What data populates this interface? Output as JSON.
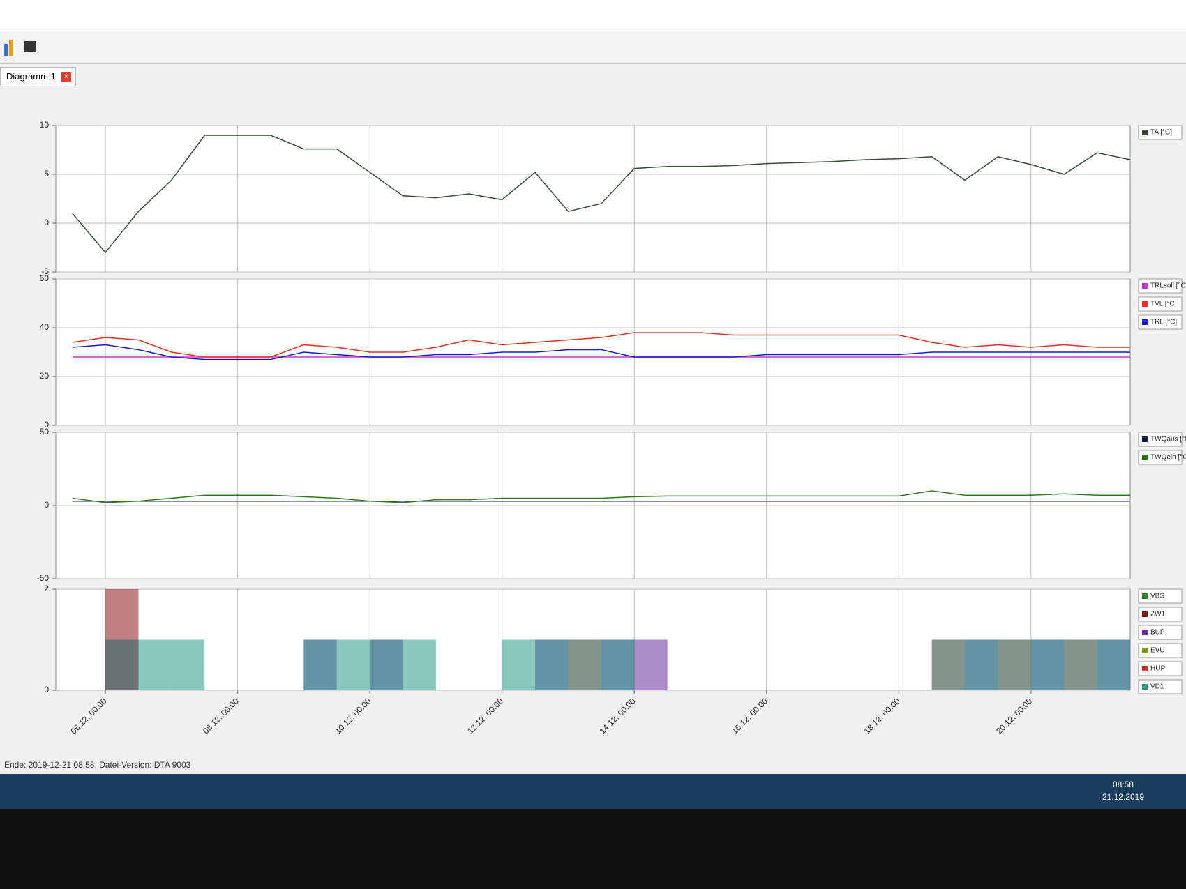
{
  "ui": {
    "tab": "Diagramm 1",
    "status": "Ende: 2019-12-21 08:58, Datei-Version: DTA 9003",
    "clock_time": "08:58",
    "clock_date": "21.12.2019"
  },
  "chart_data": [
    {
      "type": "line",
      "x": [
        "05.12. 12:00",
        "06.12. 00:00",
        "06.12. 12:00",
        "07.12. 00:00",
        "07.12. 12:00",
        "08.12. 00:00",
        "08.12. 12:00",
        "09.12. 00:00",
        "09.12. 12:00",
        "10.12. 00:00",
        "10.12. 12:00",
        "11.12. 00:00",
        "11.12. 12:00",
        "12.12. 00:00",
        "12.12. 12:00",
        "13.12. 00:00",
        "13.12. 12:00",
        "14.12. 00:00",
        "14.12. 12:00",
        "15.12. 00:00",
        "15.12. 12:00",
        "16.12. 00:00",
        "16.12. 12:00",
        "17.12. 00:00",
        "17.12. 12:00",
        "18.12. 00:00",
        "18.12. 12:00",
        "19.12. 00:00",
        "19.12. 12:00",
        "20.12. 00:00",
        "20.12. 12:00",
        "21.12. 00:00",
        "21.12. 12:00"
      ],
      "xlim": [
        "05.12. 06:00",
        "21.12. 12:00"
      ],
      "xticks": [
        "06.12. 00:00",
        "08.12. 00:00",
        "10.12. 00:00",
        "12.12. 00:00",
        "14.12. 00:00",
        "16.12. 00:00",
        "18.12. 00:00",
        "20.12. 00:00"
      ],
      "ylim": [
        -5,
        10
      ],
      "yticks": [
        -5,
        0,
        5,
        10
      ],
      "grid": true,
      "series": [
        {
          "name": "TA [°C]",
          "color": "#3a4a3a",
          "values": [
            1,
            -3,
            1.2,
            4.4,
            9,
            9,
            9,
            7.6,
            7.6,
            5.2,
            2.8,
            2.6,
            3,
            2.4,
            5.2,
            1.2,
            2,
            5.6,
            5.8,
            5.8,
            5.9,
            6.1,
            6.2,
            6.3,
            6.5,
            6.6,
            6.8,
            4.4,
            6.8,
            6,
            5,
            7.2,
            6.5
          ]
        }
      ]
    },
    {
      "type": "line",
      "x": [
        "05.12. 12:00",
        "06.12. 00:00",
        "06.12. 12:00",
        "07.12. 00:00",
        "07.12. 12:00",
        "08.12. 00:00",
        "08.12. 12:00",
        "09.12. 00:00",
        "09.12. 12:00",
        "10.12. 00:00",
        "10.12. 12:00",
        "11.12. 00:00",
        "11.12. 12:00",
        "12.12. 00:00",
        "12.12. 12:00",
        "13.12. 00:00",
        "13.12. 12:00",
        "14.12. 00:00",
        "14.12. 12:00",
        "15.12. 00:00",
        "15.12. 12:00",
        "16.12. 00:00",
        "16.12. 12:00",
        "17.12. 00:00",
        "17.12. 12:00",
        "18.12. 00:00",
        "18.12. 12:00",
        "19.12. 00:00",
        "19.12. 12:00",
        "20.12. 00:00",
        "20.12. 12:00",
        "21.12. 00:00",
        "21.12. 12:00"
      ],
      "xlim": [
        "05.12. 06:00",
        "21.12. 12:00"
      ],
      "xticks": [
        "06.12. 00:00",
        "08.12. 00:00",
        "10.12. 00:00",
        "12.12. 00:00",
        "14.12. 00:00",
        "16.12. 00:00",
        "18.12. 00:00",
        "20.12. 00:00"
      ],
      "ylim": [
        0,
        60
      ],
      "yticks": [
        0,
        20,
        40,
        60
      ],
      "grid": true,
      "series": [
        {
          "name": "TRLsoll [°C]",
          "color": "#cc33cc",
          "values": [
            28,
            28,
            28,
            28,
            28,
            28,
            28,
            28,
            28,
            28,
            28,
            28,
            28,
            28,
            28,
            28,
            28,
            28,
            28,
            28,
            28,
            28,
            28,
            28,
            28,
            28,
            28,
            28,
            28,
            28,
            28,
            28,
            28
          ]
        },
        {
          "name": "TVL [°C]",
          "color": "#e03020",
          "values": [
            34,
            36,
            35,
            30,
            28,
            28,
            28,
            33,
            32,
            30,
            30,
            32,
            35,
            33,
            34,
            35,
            36,
            38,
            38,
            38,
            37,
            37,
            37,
            37,
            37,
            37,
            34,
            32,
            33,
            32,
            33,
            32,
            32
          ]
        },
        {
          "name": "TRL [°C]",
          "color": "#1a1acc",
          "values": [
            32,
            33,
            31,
            28,
            27,
            27,
            27,
            30,
            29,
            28,
            28,
            29,
            29,
            30,
            30,
            31,
            31,
            28,
            28,
            28,
            28,
            29,
            29,
            29,
            29,
            29,
            30,
            30,
            30,
            30,
            30,
            30,
            30
          ]
        }
      ]
    },
    {
      "type": "line",
      "x": [
        "05.12. 12:00",
        "06.12. 00:00",
        "06.12. 12:00",
        "07.12. 00:00",
        "07.12. 12:00",
        "08.12. 00:00",
        "08.12. 12:00",
        "09.12. 00:00",
        "09.12. 12:00",
        "10.12. 00:00",
        "10.12. 12:00",
        "11.12. 00:00",
        "11.12. 12:00",
        "12.12. 00:00",
        "12.12. 12:00",
        "13.12. 00:00",
        "13.12. 12:00",
        "14.12. 00:00",
        "14.12. 12:00",
        "15.12. 00:00",
        "15.12. 12:00",
        "16.12. 00:00",
        "16.12. 12:00",
        "17.12. 00:00",
        "17.12. 12:00",
        "18.12. 00:00",
        "18.12. 12:00",
        "19.12. 00:00",
        "19.12. 12:00",
        "20.12. 00:00",
        "20.12. 12:00",
        "21.12. 00:00",
        "21.12. 12:00"
      ],
      "xlim": [
        "05.12. 06:00",
        "21.12. 12:00"
      ],
      "xticks": [
        "06.12. 00:00",
        "08.12. 00:00",
        "10.12. 00:00",
        "12.12. 00:00",
        "14.12. 00:00",
        "16.12. 00:00",
        "18.12. 00:00",
        "20.12. 00:00"
      ],
      "ylim": [
        -50,
        50
      ],
      "yticks": [
        -50,
        0,
        50
      ],
      "grid": true,
      "series": [
        {
          "name": "TWQaus [°C]",
          "color": "#1a1a5a",
          "values": [
            3,
            3,
            3,
            3,
            3,
            3,
            3,
            3,
            3,
            3,
            3,
            3,
            3,
            3,
            3,
            3,
            3,
            3,
            3,
            3,
            3,
            3,
            3,
            3,
            3,
            3,
            3,
            3,
            3,
            3,
            3,
            3,
            3
          ]
        },
        {
          "name": "TWQein [°C]",
          "color": "#2f7a1f",
          "values": [
            5,
            2,
            3,
            5,
            7,
            7,
            7,
            6,
            5,
            3,
            2,
            4,
            4,
            5,
            5,
            5,
            5,
            6,
            6.5,
            6.5,
            6.5,
            6.5,
            6.5,
            6.5,
            6.5,
            6.5,
            10,
            7,
            7,
            7,
            8,
            7,
            7
          ]
        }
      ]
    },
    {
      "type": "step",
      "x": [
        "05.12. 12:00",
        "06.12. 00:00",
        "06.12. 12:00",
        "07.12. 00:00",
        "07.12. 12:00",
        "08.12. 00:00",
        "08.12. 12:00",
        "09.12. 00:00",
        "09.12. 12:00",
        "10.12. 00:00",
        "10.12. 12:00",
        "11.12. 00:00",
        "11.12. 12:00",
        "12.12. 00:00",
        "12.12. 12:00",
        "13.12. 00:00",
        "13.12. 12:00",
        "14.12. 00:00",
        "14.12. 12:00",
        "15.12. 00:00",
        "15.12. 12:00",
        "16.12. 00:00",
        "16.12. 12:00",
        "17.12. 00:00",
        "17.12. 12:00",
        "18.12. 00:00",
        "18.12. 12:00",
        "19.12. 00:00",
        "19.12. 12:00",
        "20.12. 00:00",
        "20.12. 12:00",
        "21.12. 00:00",
        "21.12. 12:00"
      ],
      "xlim": [
        "05.12. 06:00",
        "21.12. 12:00"
      ],
      "xticks": [
        "06.12. 00:00",
        "08.12. 00:00",
        "10.12. 00:00",
        "12.12. 00:00",
        "14.12. 00:00",
        "16.12. 00:00",
        "18.12. 00:00",
        "20.12. 00:00"
      ],
      "ylim": [
        0,
        2
      ],
      "yticks": [
        0,
        2
      ],
      "grid": true,
      "series": [
        {
          "name": "VBS",
          "color": "#2e8b2e",
          "values": [
            0,
            0,
            0,
            0,
            0,
            0,
            0,
            0,
            0,
            0,
            0,
            0,
            0,
            0,
            0,
            0,
            0,
            0,
            0,
            0,
            0,
            0,
            0,
            0,
            0,
            0,
            0,
            0,
            0,
            0,
            0,
            0,
            0
          ]
        },
        {
          "name": "ZW1",
          "color": "#8b1a1a",
          "values": [
            0,
            2,
            0,
            0,
            0,
            0,
            0,
            0,
            0,
            0,
            0,
            0,
            0,
            0,
            0,
            0,
            0,
            0,
            0,
            0,
            0,
            0,
            0,
            0,
            0,
            0,
            0,
            0,
            0,
            0,
            0,
            0,
            0
          ]
        },
        {
          "name": "BUP",
          "color": "#6a2a9a",
          "values": [
            0,
            1,
            0,
            0,
            0,
            0,
            0,
            1,
            0,
            1,
            0,
            0,
            0,
            0,
            1,
            0,
            1,
            1,
            0,
            0,
            0,
            0,
            0,
            0,
            0,
            0,
            0,
            1,
            0,
            1,
            0,
            1,
            0
          ]
        },
        {
          "name": "EVU",
          "color": "#7a9a2a",
          "values": [
            0,
            0,
            0,
            0,
            0,
            0,
            0,
            0,
            0,
            0,
            0,
            0,
            0,
            0,
            0,
            0,
            0,
            0,
            0,
            0,
            0,
            0,
            0,
            0,
            0,
            0,
            0,
            0,
            0,
            0,
            0,
            0,
            0
          ]
        },
        {
          "name": "HUP",
          "color": "#e03030",
          "values": [
            0,
            1,
            0,
            0,
            0,
            0,
            0,
            0,
            0,
            0,
            0,
            0,
            0,
            0,
            0,
            1,
            0,
            0,
            0,
            0,
            0,
            0,
            0,
            0,
            0,
            0,
            1,
            0,
            1,
            0,
            1,
            0,
            1
          ]
        },
        {
          "name": "VD1",
          "color": "#2a9a8a",
          "values": [
            0,
            1,
            1,
            1,
            0,
            0,
            0,
            1,
            1,
            1,
            1,
            0,
            0,
            1,
            1,
            1,
            1,
            0,
            0,
            0,
            0,
            0,
            0,
            0,
            0,
            0,
            1,
            1,
            1,
            1,
            1,
            1,
            1
          ]
        }
      ]
    }
  ]
}
